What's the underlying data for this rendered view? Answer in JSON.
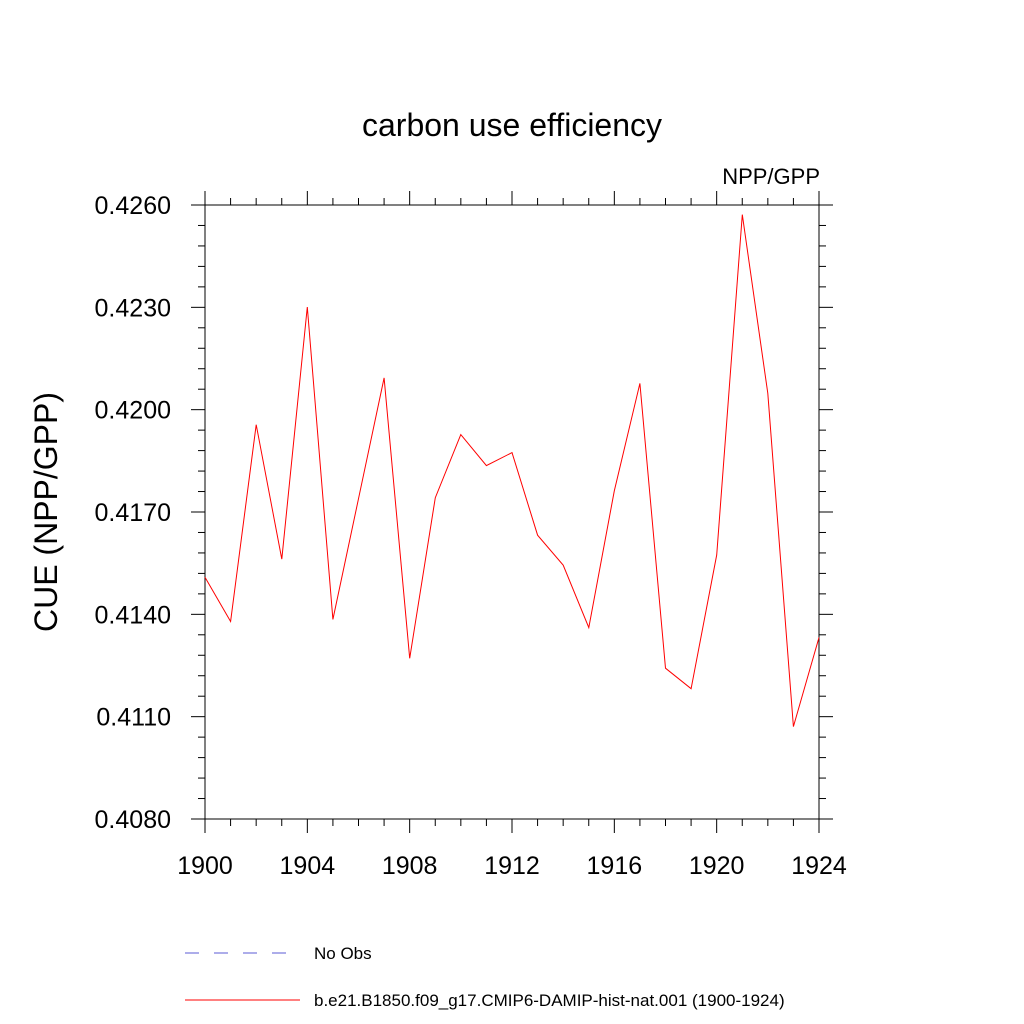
{
  "chart_data": {
    "type": "line",
    "title": "carbon use efficiency",
    "units_label": "NPP/GPP",
    "ylabel": "CUE  (NPP/GPP)",
    "xlabel": "",
    "xlim": [
      1900,
      1924
    ],
    "ylim": [
      0.408,
      0.426
    ],
    "x_ticks": [
      1900,
      1904,
      1908,
      1912,
      1916,
      1920,
      1924
    ],
    "x_tick_labels": [
      "1900",
      "1904",
      "1908",
      "1912",
      "1916",
      "1920",
      "1924"
    ],
    "y_ticks": [
      0.408,
      0.411,
      0.414,
      0.417,
      0.42,
      0.423,
      0.426
    ],
    "y_tick_labels": [
      "0.4080",
      "0.4110",
      "0.4140",
      "0.4170",
      "0.4200",
      "0.4230",
      "0.4260"
    ],
    "grid": false,
    "legend_position": "bottom",
    "series": [
      {
        "name": "b.e21.B1850.f09_g17.CMIP6-DAMIP-hist-nat.001 (1900-1924)",
        "color": "#ff0000",
        "style": "solid",
        "x": [
          1900,
          1901,
          1902,
          1903,
          1904,
          1905,
          1906,
          1907,
          1908,
          1909,
          1910,
          1911,
          1912,
          1913,
          1914,
          1915,
          1916,
          1917,
          1918,
          1919,
          1920,
          1921,
          1922,
          1923,
          1924
        ],
        "values": [
          0.41509,
          0.41379,
          0.41956,
          0.41562,
          0.42301,
          0.41385,
          0.41739,
          0.42093,
          0.41271,
          0.41742,
          0.41927,
          0.41836,
          0.41874,
          0.41632,
          0.41544,
          0.41361,
          0.41762,
          0.42077,
          0.41242,
          0.41182,
          0.41574,
          0.42572,
          0.42048,
          0.41071,
          0.41332
        ]
      }
    ],
    "legend": [
      {
        "label": "No Obs",
        "color": "#5b5bd6",
        "style": "dashed"
      },
      {
        "label": "b.e21.B1850.f09_g17.CMIP6-DAMIP-hist-nat.001 (1900-1924)",
        "color": "#ff0000",
        "style": "solid"
      }
    ]
  }
}
